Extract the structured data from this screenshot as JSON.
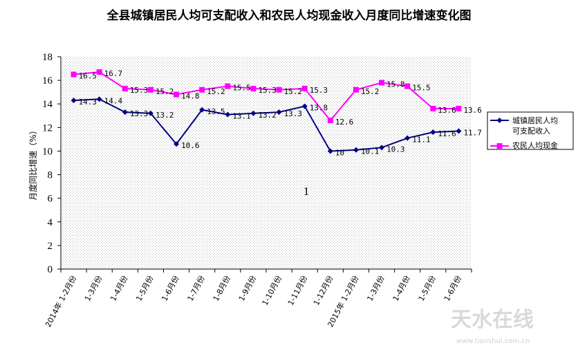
{
  "chart_data": {
    "type": "line",
    "title": "全县城镇居民人均可支配收入和农民人均现金收入月度同比增速变化图",
    "ylabel": "月度同比增速（%）",
    "xlabel": "",
    "ylim": [
      0,
      18
    ],
    "yticks": [
      0,
      2,
      4,
      6,
      8,
      10,
      12,
      14,
      16,
      18
    ],
    "grid": false,
    "legend_position": "right",
    "categories": [
      "2014年 1-2月份",
      "1-3月份",
      "1-4月份",
      "1-5月份",
      "1-6月份",
      "1-7月份",
      "1-8月份",
      "1-9月份",
      "1-10月份",
      "1-11月份",
      "1-12月份",
      "2015年 1-2月份",
      "1-3月份",
      "1-4月份",
      "1-5月份",
      "1-6月份"
    ],
    "series": [
      {
        "name": "城镇居民人均可支配收入",
        "color": "#000080",
        "marker": "diamond",
        "values": [
          14.3,
          14.4,
          13.3,
          13.2,
          10.6,
          13.5,
          13.1,
          13.2,
          13.3,
          13.8,
          10.0,
          10.1,
          10.3,
          11.1,
          11.6,
          11.7
        ],
        "labels": [
          "14.3",
          "14.4",
          "13.3",
          "13.2",
          "10.6",
          "13.5",
          "13.1",
          "13.2",
          "13.3",
          "13.8",
          "10",
          "10.1",
          "10.3",
          "11.1",
          "11.6",
          "11.7"
        ]
      },
      {
        "name": "农民人均现金",
        "color": "#ff00ff",
        "marker": "square",
        "values": [
          16.5,
          16.7,
          15.3,
          15.2,
          14.8,
          15.2,
          15.5,
          15.3,
          15.2,
          15.3,
          12.6,
          15.2,
          15.8,
          15.5,
          13.6,
          13.6
        ],
        "labels": [
          "16.5",
          "16.7",
          "15.3",
          "15.2",
          "14.8",
          "15.2",
          "15.5",
          "15.3",
          "15.2",
          "15.3",
          "12.6",
          "15.2",
          "15.8",
          "15.5",
          "13.6",
          "13.6"
        ]
      }
    ],
    "annotations": [
      "1"
    ]
  },
  "legend": {
    "series1_line1": "城镇居民人均",
    "series1_line2": "可支配收入",
    "series2": "农民人均现金"
  },
  "watermark": {
    "brand": "天水在线",
    "url": "www.tianshui.com.cn"
  }
}
